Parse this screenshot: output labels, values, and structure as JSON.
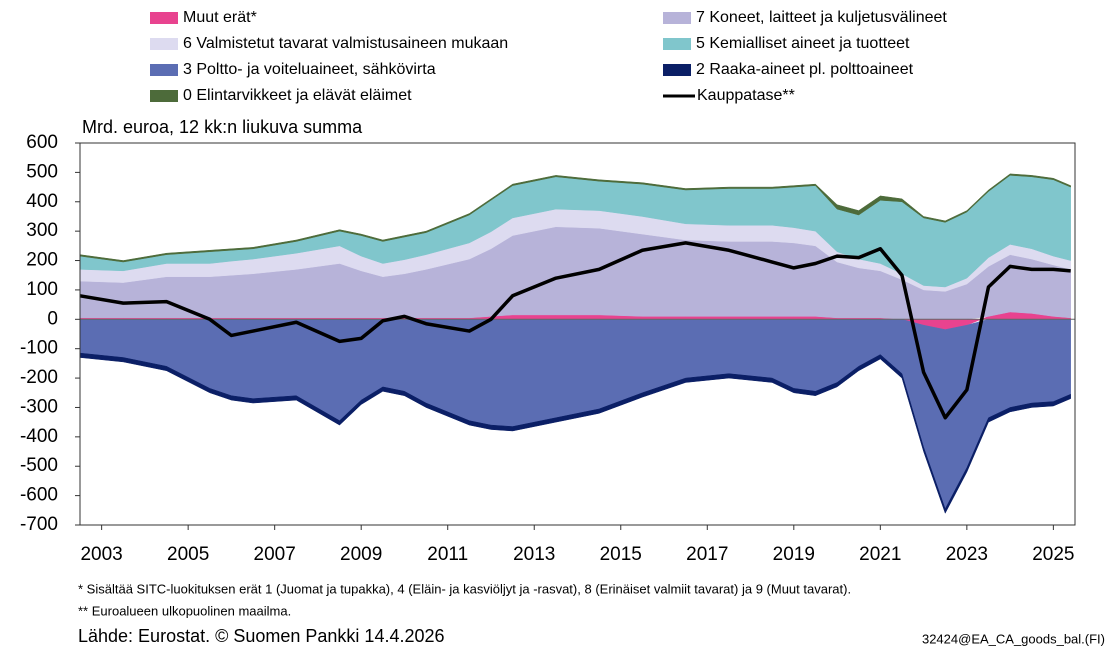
{
  "chart_data": {
    "type": "area",
    "subtitle": "Mrd. euroa, 12 kk:n liukuva summa",
    "x": [
      2002.5,
      2003.5,
      2004.5,
      2005.5,
      2006.0,
      2006.5,
      2007.5,
      2008.5,
      2009.0,
      2009.5,
      2010.0,
      2010.5,
      2011.5,
      2012.0,
      2012.5,
      2013.5,
      2014.5,
      2015.5,
      2016.5,
      2017.5,
      2018.5,
      2019.0,
      2019.5,
      2020.0,
      2020.5,
      2021.0,
      2021.5,
      2022.0,
      2022.5,
      2023.0,
      2023.5,
      2024.0,
      2024.5,
      2025.0,
      2025.4
    ],
    "xlim": [
      2002.5,
      2025.5
    ],
    "xticks": [
      2003,
      2005,
      2007,
      2009,
      2011,
      2013,
      2015,
      2017,
      2019,
      2021,
      2023,
      2025
    ],
    "ylim": [
      -700,
      600
    ],
    "yticks": [
      600,
      500,
      400,
      300,
      200,
      100,
      0,
      -100,
      -200,
      -300,
      -400,
      -500,
      -600,
      -700
    ],
    "series": [
      {
        "name": "Muut erät*",
        "color": "#e8438f",
        "values": [
          5,
          5,
          5,
          5,
          5,
          5,
          5,
          5,
          5,
          5,
          5,
          5,
          5,
          10,
          15,
          15,
          15,
          10,
          10,
          10,
          10,
          10,
          10,
          5,
          5,
          5,
          0,
          -20,
          -35,
          -20,
          10,
          25,
          20,
          10,
          5
        ]
      },
      {
        "name": "7 Koneet, laitteet ja kuljetusvälineet",
        "color": "#b7b3d9",
        "values": [
          125,
          120,
          140,
          140,
          145,
          150,
          165,
          185,
          160,
          140,
          150,
          165,
          200,
          230,
          270,
          300,
          295,
          280,
          260,
          255,
          255,
          250,
          240,
          190,
          170,
          160,
          135,
          100,
          95,
          120,
          170,
          195,
          185,
          175,
          165
        ]
      },
      {
        "name": "6 Valmistetut tavarat valmistusaineen mukaan",
        "color": "#dddbf0",
        "values": [
          40,
          40,
          45,
          45,
          48,
          50,
          55,
          60,
          50,
          45,
          48,
          50,
          55,
          58,
          60,
          60,
          60,
          60,
          55,
          55,
          55,
          52,
          50,
          35,
          30,
          25,
          20,
          15,
          15,
          20,
          30,
          35,
          35,
          30,
          30
        ]
      },
      {
        "name": "5 Kemialliset aineet ja tuotteet",
        "color": "#80c6cc",
        "values": [
          45,
          30,
          30,
          40,
          37,
          35,
          40,
          50,
          70,
          75,
          77,
          75,
          95,
          107,
          110,
          110,
          100,
          110,
          115,
          125,
          125,
          138,
          155,
          145,
          150,
          215,
          245,
          230,
          220,
          225,
          225,
          235,
          245,
          260,
          250
        ]
      },
      {
        "name": "3 Poltto- ja voiteluaineet, sähkövirta",
        "color": "#5b6db3",
        "values": [
          -115,
          -130,
          -160,
          -235,
          -260,
          -270,
          -260,
          -345,
          -275,
          -230,
          -245,
          -285,
          -345,
          -360,
          -365,
          -335,
          -305,
          -250,
          -200,
          -185,
          -200,
          -235,
          -245,
          -215,
          -160,
          -120,
          -185,
          -415,
          -610,
          -485,
          -335,
          -300,
          -285,
          -280,
          -255
        ]
      },
      {
        "name": "2 Raaka-aineet pl. polttoaineet",
        "color": "#0b1f66",
        "values": [
          -15,
          -15,
          -15,
          -15,
          -15,
          -15,
          -15,
          -15,
          -15,
          -15,
          -15,
          -15,
          -15,
          -15,
          -15,
          -15,
          -15,
          -15,
          -15,
          -15,
          -15,
          -15,
          -15,
          -15,
          -15,
          -15,
          -15,
          -15,
          -15,
          -15,
          -15,
          -15,
          -15,
          -15,
          -15
        ]
      },
      {
        "name": "0 Elintarvikkeet ja elävät eläimet",
        "color": "#4d6b3a",
        "values": [
          5,
          5,
          5,
          5,
          5,
          5,
          5,
          5,
          5,
          5,
          5,
          5,
          5,
          5,
          5,
          5,
          5,
          5,
          5,
          5,
          5,
          5,
          5,
          15,
          15,
          15,
          10,
          5,
          5,
          5,
          5,
          5,
          5,
          5,
          5
        ]
      },
      {
        "name": "Kauppatase**",
        "type": "line",
        "color": "#000000",
        "values": [
          80,
          55,
          60,
          0,
          -55,
          -40,
          -10,
          -75,
          -65,
          -5,
          10,
          -15,
          -40,
          0,
          80,
          140,
          170,
          235,
          260,
          235,
          195,
          175,
          190,
          215,
          210,
          240,
          150,
          -180,
          -335,
          -240,
          110,
          180,
          170,
          170,
          165
        ]
      }
    ],
    "notes": [
      "* Sisältää SITC-luokituksen erät 1 (Juomat ja tupakka), 4 (Eläin- ja kasviöljyt ja -rasvat), 8 (Erinäiset valmiit tavarat) ja 9 (Muut tavarat).",
      "** Euroalueen ulkopuolinen maailma."
    ],
    "source": "Lähde: Eurostat. © Suomen Pankki 14.4.2026",
    "code": "32424@EA_CA_goods_bal.(FI)"
  }
}
